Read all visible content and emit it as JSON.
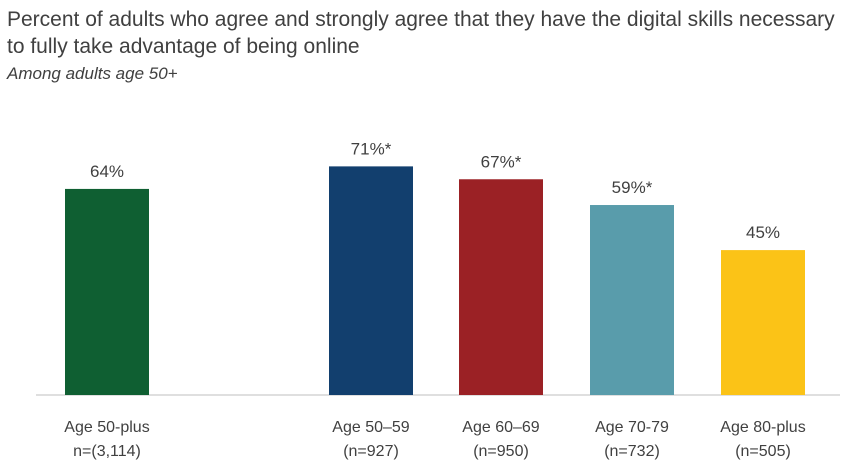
{
  "chart_data": {
    "type": "bar",
    "title": "Percent of adults who agree and strongly agree that they have the digital skills necessary to fully take advantage of being online",
    "subtitle": "Among adults age 50+",
    "ylim": [
      0,
      100
    ],
    "grid": false,
    "legend": "none",
    "bars": [
      {
        "category": "Age 50-plus",
        "n": "n=(3,114)",
        "value": 64,
        "label": "64%",
        "color": "#0f5f32"
      },
      {
        "category": "Age 50–59",
        "n": "(n=927)",
        "value": 71,
        "label": "71%*",
        "color": "#123f6e"
      },
      {
        "category": "Age 60–69",
        "n": "(n=950)",
        "value": 67,
        "label": "67%*",
        "color": "#9b2125"
      },
      {
        "category": "Age 70-79",
        "n": "(n=732)",
        "value": 59,
        "label": "59%*",
        "color": "#599cab"
      },
      {
        "category": "Age 80-plus",
        "n": "(n=505)",
        "value": 45,
        "label": "45%",
        "color": "#fbc317"
      }
    ]
  }
}
